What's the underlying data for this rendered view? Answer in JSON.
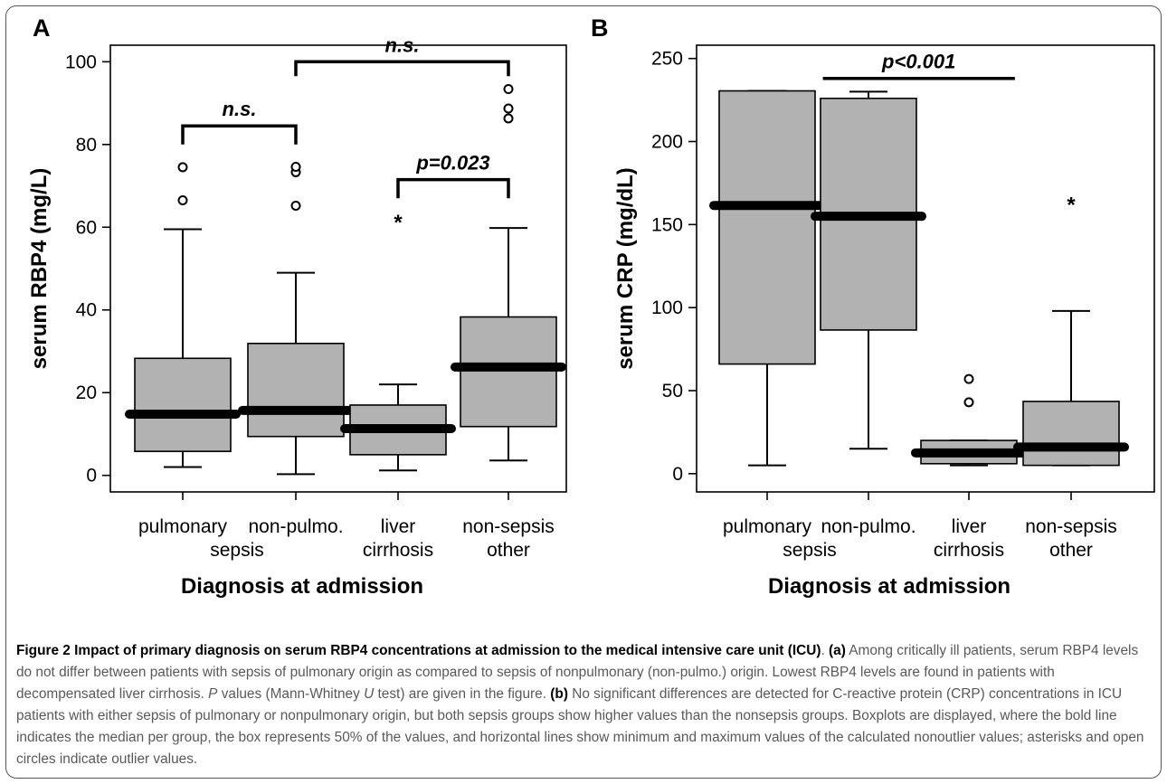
{
  "chart_data": [
    {
      "type": "box",
      "panel_label": "A",
      "categories": [
        [
          "pulmonary",
          ""
        ],
        [
          "non-pulmo.",
          "sepsis"
        ],
        [
          "liver",
          "cirrhosis"
        ],
        [
          "non-sepsis",
          "other"
        ]
      ],
      "xlabel": "Diagnosis at admission",
      "ylabel": "serum RBP4 (mg/L)",
      "ylim": [
        -4,
        104
      ],
      "yticks": [
        0,
        20,
        40,
        60,
        80,
        100
      ],
      "grid": false,
      "colors": {
        "box": "#b2b2b2",
        "line": "#000000"
      },
      "boxes": [
        {
          "min": 2,
          "q1": 5.8,
          "median": 14.8,
          "q3": 28.3,
          "max": 59.5,
          "circles": [
            66.5,
            74.5
          ],
          "stars": []
        },
        {
          "min": 0.3,
          "q1": 9.4,
          "median": 15.7,
          "q3": 31.9,
          "max": 49,
          "circles": [
            65.2,
            73.3,
            74.6
          ],
          "stars": []
        },
        {
          "min": 1.2,
          "q1": 5,
          "median": 11.3,
          "q3": 17,
          "max": 22,
          "circles": [],
          "stars": [
            62
          ]
        },
        {
          "min": 3.6,
          "q1": 11.8,
          "median": 26.2,
          "q3": 38.3,
          "max": 59.8,
          "circles": [
            86.3,
            88.7,
            93.4
          ],
          "stars": []
        }
      ],
      "brackets": [
        {
          "from": 0,
          "to": 1,
          "y": 84.5,
          "drop": 4.5,
          "label": "n.s."
        },
        {
          "from": 1,
          "to": 3,
          "y": 100,
          "drop": 3.5,
          "label": "n.s."
        },
        {
          "from": 2,
          "to": 3,
          "y": 71.5,
          "drop": 4.5,
          "label": "p=0.023"
        }
      ]
    },
    {
      "type": "box",
      "panel_label": "B",
      "categories": [
        [
          "pulmonary",
          ""
        ],
        [
          "non-pulmo.",
          "sepsis"
        ],
        [
          "liver",
          "cirrhosis"
        ],
        [
          "non-sepsis",
          "other"
        ]
      ],
      "xlabel": "Diagnosis at admission",
      "ylabel": "serum CRP (mg/dL)",
      "ylim": [
        -11,
        258
      ],
      "yticks": [
        0,
        50,
        100,
        150,
        200,
        250
      ],
      "grid": false,
      "colors": {
        "box": "#b2b2b2",
        "line": "#000000"
      },
      "boxes": [
        {
          "min": 5,
          "q1": 66,
          "median": 161.5,
          "q3": 230.5,
          "max": 230.5,
          "circles": [],
          "stars": []
        },
        {
          "min": 15,
          "q1": 86.5,
          "median": 155,
          "q3": 226,
          "max": 230,
          "circles": [],
          "stars": []
        },
        {
          "min": 5,
          "q1": 6,
          "median": 12.5,
          "q3": 20,
          "max": 20,
          "circles": [
            43,
            57
          ],
          "stars": []
        },
        {
          "min": 5,
          "q1": 5,
          "median": 16,
          "q3": 43.5,
          "max": 98,
          "circles": [],
          "stars": [
            164
          ]
        }
      ],
      "brackets": [
        {
          "from": 0.55,
          "to": 2.45,
          "y": 238,
          "drop": 0,
          "label": "p<0.001"
        }
      ]
    }
  ],
  "caption": {
    "label": "Figure 2",
    "title": "Impact of primary diagnosis on serum RBP4 concentrations at admission to the medical intensive care unit (ICU)",
    "a_label": "(a)",
    "a_text_1": "Among critically ill patients, serum RBP4 levels do not differ between patients with sepsis of pulmonary origin as compared to sepsis of nonpulmonary (non-pulmo.) origin. Lowest RBP4 levels are found in patients with decompensated liver cirrhosis.",
    "a_p": "P",
    "a_text_2": "values (Mann-Whitney",
    "a_u": "U",
    "a_text_3": "test) are given in the figure.",
    "b_label": "(b)",
    "b_text": "No significant differences are detected for C-reactive protein (CRP) concentrations in ICU patients with either sepsis of pulmonary or nonpulmonary origin, but both sepsis groups show higher values than the nonsepsis groups. Boxplots are displayed, where the bold line indicates the median per group, the box represents 50% of the values, and horizontal lines show minimum and maximum values of the calculated nonoutlier values; asterisks and open circles indicate outlier values."
  }
}
